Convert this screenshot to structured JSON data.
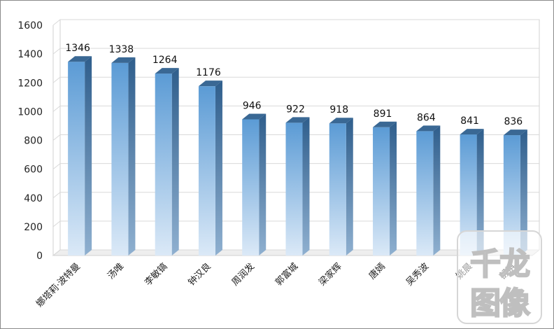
{
  "chart_data": {
    "type": "bar",
    "title": "",
    "xlabel": "",
    "ylabel": "",
    "categories": [
      "娜塔莉·波特曼",
      "汤唯",
      "李敏镐",
      "钟汉良",
      "周润发",
      "郭富城",
      "梁家辉",
      "唐嫣",
      "吴秀波",
      "姚晨",
      "舒淇"
    ],
    "values": [
      1346,
      1338,
      1264,
      1176,
      946,
      922,
      918,
      891,
      864,
      841,
      836
    ],
    "ylim": [
      0,
      1600
    ],
    "yticks": [
      0,
      200,
      400,
      600,
      800,
      1000,
      1200,
      1400,
      1600
    ],
    "grid": true,
    "legend": "none",
    "colors": {
      "bar_top": "#5b9bd5",
      "bar_bottom": "#dbe9f7",
      "bar_side": "#3d6e9e",
      "bar_cap": "#3a6894",
      "grid": "#d9d9d9"
    }
  },
  "watermark": {
    "line1": "千龙",
    "line2": "图像"
  }
}
